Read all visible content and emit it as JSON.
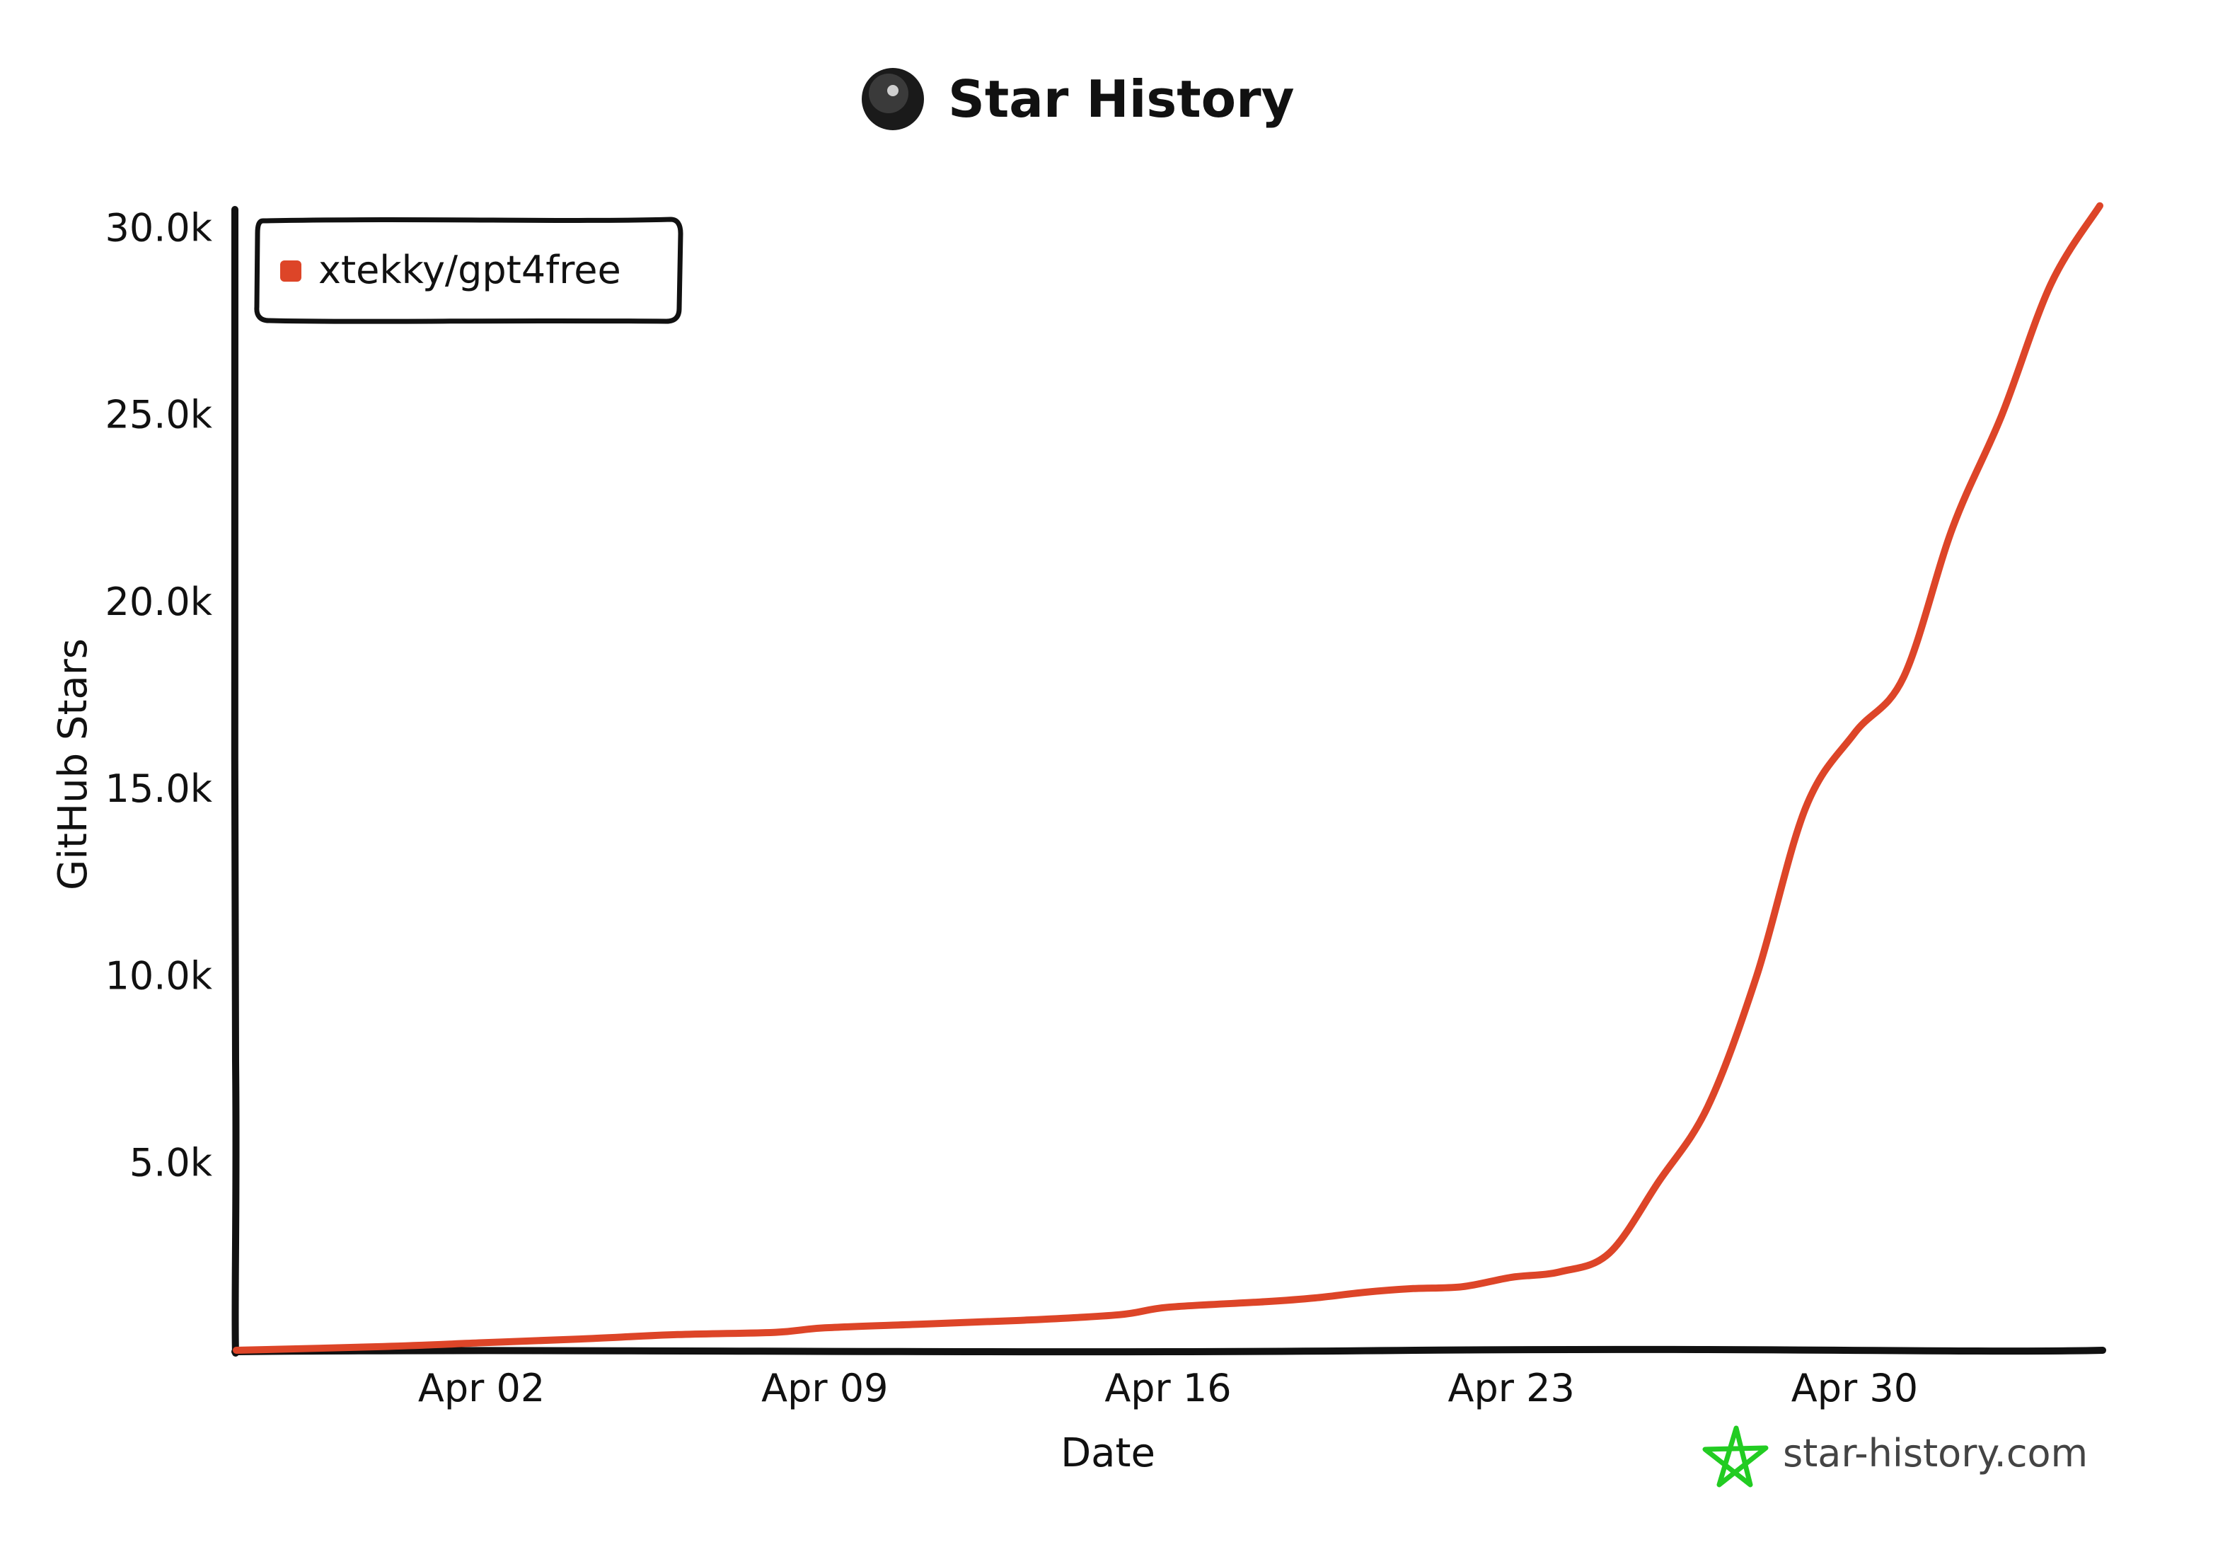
{
  "chart_data": {
    "type": "line",
    "title": "Star History",
    "xlabel": "Date",
    "ylabel": "GitHub Stars",
    "x_range": [
      "2023-03-28",
      "2023-05-05"
    ],
    "ylim": [
      0,
      30500
    ],
    "x_ticks": [
      {
        "date": "2023-04-02",
        "label": "Apr 02"
      },
      {
        "date": "2023-04-09",
        "label": "Apr 09"
      },
      {
        "date": "2023-04-16",
        "label": "Apr 16"
      },
      {
        "date": "2023-04-23",
        "label": "Apr 23"
      },
      {
        "date": "2023-04-30",
        "label": "Apr 30"
      }
    ],
    "y_ticks": [
      {
        "value": 5000,
        "label": "5.0k"
      },
      {
        "value": 10000,
        "label": "10.0k"
      },
      {
        "value": 15000,
        "label": "15.0k"
      },
      {
        "value": 20000,
        "label": "20.0k"
      },
      {
        "value": 25000,
        "label": "25.0k"
      },
      {
        "value": 30000,
        "label": "30.0k"
      }
    ],
    "legend_position": "top-left",
    "grid": false,
    "series": [
      {
        "name": "xtekky/gpt4free",
        "color": "#dd4528",
        "points": [
          {
            "x": "2023-03-28",
            "y": 0
          },
          {
            "x": "2023-03-31",
            "y": 100
          },
          {
            "x": "2023-04-02",
            "y": 200
          },
          {
            "x": "2023-04-04",
            "y": 300
          },
          {
            "x": "2023-04-06",
            "y": 420
          },
          {
            "x": "2023-04-08",
            "y": 480
          },
          {
            "x": "2023-04-09",
            "y": 600
          },
          {
            "x": "2023-04-11",
            "y": 700
          },
          {
            "x": "2023-04-13",
            "y": 800
          },
          {
            "x": "2023-04-15",
            "y": 950
          },
          {
            "x": "2023-04-16",
            "y": 1150
          },
          {
            "x": "2023-04-18",
            "y": 1300
          },
          {
            "x": "2023-04-19",
            "y": 1400
          },
          {
            "x": "2023-04-20",
            "y": 1550
          },
          {
            "x": "2023-04-21",
            "y": 1650
          },
          {
            "x": "2023-04-22",
            "y": 1700
          },
          {
            "x": "2023-04-23",
            "y": 1950
          },
          {
            "x": "2023-04-24",
            "y": 2100
          },
          {
            "x": "2023-04-25",
            "y": 2600
          },
          {
            "x": "2023-04-26",
            "y": 4500
          },
          {
            "x": "2023-04-27",
            "y": 6500
          },
          {
            "x": "2023-04-28",
            "y": 10000
          },
          {
            "x": "2023-04-29",
            "y": 14500
          },
          {
            "x": "2023-04-30",
            "y": 16500
          },
          {
            "x": "2023-05-01",
            "y": 18000
          },
          {
            "x": "2023-05-02",
            "y": 22000
          },
          {
            "x": "2023-05-03",
            "y": 25000
          },
          {
            "x": "2023-05-04",
            "y": 28500
          },
          {
            "x": "2023-05-05",
            "y": 30600
          }
        ]
      }
    ]
  },
  "watermark": {
    "text": "star-history.com",
    "icon": "star-icon",
    "icon_color": "#22cc22"
  },
  "header": {
    "logo_icon": "avatar-icon"
  }
}
